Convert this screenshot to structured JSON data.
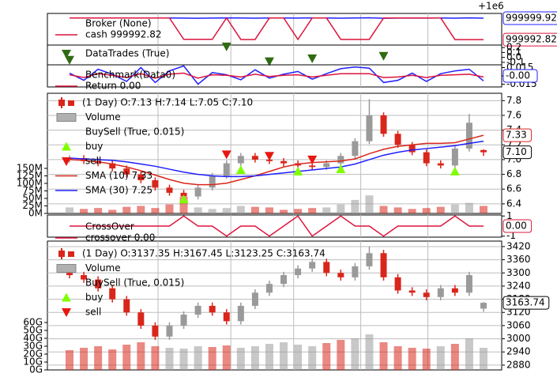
{
  "x_grid": [
    6.2,
    11.3,
    15.7,
    20.4,
    25.1
  ],
  "chart_data": [
    {
      "type": "line",
      "offset_text": "+1e6",
      "ylim": [
        999991,
        1000001.5
      ],
      "series": [
        {
          "color": "#1f1fff",
          "values": [
            1000000,
            1000000,
            1000000,
            1000000,
            1000000,
            1000000,
            1000000,
            1000000,
            999999.96,
            999999.9,
            999999.95,
            1000000.02,
            999999.98,
            999999.93,
            1000000,
            1000000,
            999999.97,
            1000000,
            1000000,
            999999.94,
            999999.99,
            1000000.05,
            999999.9,
            999999.95,
            999999.97,
            999999.96,
            999999.99,
            999999.93,
            1000000.03,
            999999.92
          ]
        },
        {
          "color": "#dc143c",
          "values": [
            1000000,
            1000000,
            1000000,
            1000000,
            1000000,
            1000000,
            1000000,
            1000000,
            999992.9,
            999992.9,
            999992.9,
            1000000,
            999992.85,
            999992.85,
            1000000,
            1000000,
            999992.86,
            1000000,
            1000000,
            999992.88,
            999992.88,
            999992.88,
            1000000,
            1000000,
            1000000,
            1000000,
            1000000,
            999992.82,
            999992.82,
            999992.82
          ]
        }
      ],
      "legend": [
        {
          "label": "Broker (None)",
          "color": null,
          "marker": "none"
        },
        {
          "label": "cash 999992.82",
          "color": "#dc143c",
          "marker": "line"
        }
      ],
      "value_labels": [
        {
          "value": 999999.92,
          "label": "999999.92",
          "color": "#1f1fff"
        },
        {
          "value": 999992.82,
          "label": "999992.82",
          "color": "#dc143c"
        }
      ]
    },
    {
      "type": "scatter",
      "ylim": [
        -0.15,
        0.25
      ],
      "yticks": [
        0.2,
        0.1,
        {
          "value": 0,
          "label": "0.0"
        },
        -0.1
      ],
      "color": "#2e6b12",
      "x": [
        0,
        11,
        14,
        17,
        22
      ],
      "values": [
        -0.05,
        0.22,
        -0.08,
        -0.02,
        0.03
      ],
      "legend": [
        {
          "label": "DataTrades (True)",
          "color": "#2e6b12",
          "marker": "down"
        }
      ]
    },
    {
      "type": "line",
      "ylim": [
        -0.02,
        0.02
      ],
      "yticks": [
        0.015,
        {
          "value": 0,
          "label": "0.000"
        },
        -0.015
      ],
      "series": [
        {
          "color": "#1f1fff",
          "values": [
            0.005,
            -0.008,
            0.012,
            0.003,
            -0.01,
            0.015,
            -0.012,
            0.009,
            0.018,
            -0.015,
            0.006,
            0.002,
            -0.007,
            0.011,
            -0.004,
            0.003,
            0.008,
            -0.006,
            0.004,
            0.013,
            0.016,
            0.014,
            -0.012,
            -0.008,
            0.005,
            -0.01,
            0.004,
            0.009,
            0.012,
            -0.009
          ]
        },
        {
          "color": "#dc143c",
          "values": [
            0.002,
            -0.003,
            0.004,
            0.001,
            -0.003,
            0.004,
            -0.004,
            0.003,
            0.005,
            -0.004,
            0.002,
            0.001,
            -0.002,
            0.003,
            -0.001,
            0.001,
            0.002,
            -0.002,
            0.001,
            0.004,
            0.004,
            0.004,
            -0.003,
            -0.002,
            0.001,
            -0.003,
            0.001,
            0.002,
            0.003,
            -0.002
          ]
        }
      ],
      "legend": [
        {
          "label": "Benchmark(Data0)",
          "color": null,
          "marker": "none"
        },
        {
          "label": "Return 0.00",
          "color": "#dc143c",
          "marker": "line"
        }
      ],
      "value_labels": [
        {
          "value": 0,
          "label": "-0.00",
          "color": "#1f1fff"
        }
      ]
    },
    {
      "type": "candlestick",
      "ylim": [
        6.27,
        7.9
      ],
      "grid": true,
      "yticks": [
        6.4,
        6.6,
        6.8,
        {
          "value": 7,
          "label": "7.0"
        },
        7.2,
        7.4,
        7.6,
        7.8
      ],
      "colors": {
        "up": "#9a9a9a",
        "down": "#d9261c"
      },
      "open": [
        7.0,
        7.02,
        6.98,
        6.95,
        6.88,
        6.8,
        6.72,
        6.62,
        6.55,
        6.5,
        6.62,
        6.78,
        6.95,
        7.05,
        7.0,
        6.98,
        6.95,
        6.92,
        6.9,
        6.95,
        7.05,
        7.25,
        7.6,
        7.35,
        7.2,
        7.1,
        6.95,
        6.92,
        7.15,
        7.13
      ],
      "high": [
        7.06,
        7.06,
        7.02,
        6.99,
        6.92,
        6.84,
        6.76,
        6.66,
        6.59,
        6.66,
        6.82,
        6.99,
        7.09,
        7.09,
        7.04,
        7.02,
        6.99,
        6.96,
        6.99,
        7.09,
        7.29,
        7.82,
        7.64,
        7.39,
        7.24,
        7.14,
        6.99,
        7.19,
        7.62,
        7.14
      ],
      "low": [
        6.96,
        6.94,
        6.91,
        6.84,
        6.76,
        6.68,
        6.58,
        6.51,
        6.46,
        6.46,
        6.58,
        6.74,
        6.91,
        6.96,
        6.94,
        6.91,
        6.88,
        6.86,
        6.86,
        6.91,
        7.01,
        7.21,
        7.31,
        7.16,
        7.06,
        6.91,
        6.88,
        6.88,
        7.11,
        7.05
      ],
      "close": [
        7.02,
        6.98,
        6.95,
        6.88,
        6.8,
        6.72,
        6.62,
        6.55,
        6.5,
        6.62,
        6.78,
        6.95,
        7.05,
        7.0,
        6.98,
        6.95,
        6.92,
        6.9,
        6.95,
        7.05,
        7.25,
        7.6,
        7.35,
        7.2,
        7.1,
        6.95,
        6.92,
        7.15,
        7.5,
        7.1
      ],
      "volume": [
        20,
        15,
        18,
        12,
        22,
        25,
        18,
        30,
        55,
        20,
        15,
        18,
        25,
        22,
        20,
        12,
        15,
        18,
        20,
        30,
        45,
        60,
        25,
        20,
        15,
        18,
        22,
        30,
        35,
        25
      ],
      "volume_ylim": [
        0,
        400
      ],
      "volume_ticks": [
        {
          "value": 0,
          "label": "0M"
        },
        {
          "value": 25,
          "label": "25M"
        },
        {
          "value": 50,
          "label": "50M"
        },
        {
          "value": 75,
          "label": "75M"
        },
        {
          "value": 100,
          "label": "100M"
        },
        {
          "value": 125,
          "label": "125M"
        },
        {
          "value": 150,
          "label": "150M"
        }
      ],
      "lines": [
        {
          "color": "#d9261c",
          "values": [
            7.0,
            6.99,
            6.97,
            6.94,
            6.9,
            6.85,
            6.79,
            6.73,
            6.68,
            6.66,
            6.66,
            6.68,
            6.73,
            6.78,
            6.84,
            6.9,
            6.94,
            6.96,
            6.97,
            6.98,
            7.01,
            7.08,
            7.14,
            7.18,
            7.2,
            7.22,
            7.22,
            7.23,
            7.28,
            7.33
          ]
        },
        {
          "color": "#1f1fff",
          "values": [
            7.02,
            7.01,
            7.0,
            6.99,
            6.97,
            6.94,
            6.91,
            6.87,
            6.83,
            6.8,
            6.78,
            6.77,
            6.77,
            6.78,
            6.8,
            6.82,
            6.84,
            6.86,
            6.88,
            6.9,
            6.94,
            7.0,
            7.06,
            7.1,
            7.13,
            7.15,
            7.17,
            7.19,
            7.22,
            7.25
          ]
        }
      ],
      "signals": [
        {
          "color": "#7fff00",
          "marker": "up",
          "x": [
            8,
            12,
            16,
            19,
            27
          ],
          "values": [
            6.46,
            6.86,
            6.84,
            6.87,
            6.84
          ]
        },
        {
          "color": "#e8170f",
          "marker": "down",
          "x": [
            11,
            14,
            17
          ],
          "values": [
            7.07,
            7.05,
            7.0
          ]
        }
      ],
      "legend": [
        {
          "label": "(1 Day) O:7.13 H:7.14 L:7.05 C:7.10",
          "color": "#d9261c",
          "marker": "candle"
        },
        {
          "label": "Volume",
          "color": "#b0b0b0",
          "marker": "bar"
        },
        {
          "label": "BuySell (True, 0.015)",
          "color": null,
          "marker": "none"
        },
        {
          "label": "buy",
          "color": "#7fff00",
          "marker": "up"
        },
        {
          "label": "sell",
          "color": "#e8170f",
          "marker": "down"
        },
        {
          "label": "SMA (10) 7.33",
          "color": "#d9261c",
          "marker": "line"
        },
        {
          "label": "SMA (30) 7.25",
          "color": "#1f1fff",
          "marker": "line"
        }
      ],
      "value_labels": [
        {
          "value": 7.33,
          "label": "7.33",
          "color": "#d9261c"
        },
        {
          "value": 7.1,
          "label": "7.10",
          "color": "#000000"
        }
      ]
    },
    {
      "type": "line",
      "ylim": [
        -1.1,
        1.1
      ],
      "yticks": [
        1,
        -1
      ],
      "series": [
        {
          "color": "#dc143c",
          "values": [
            0,
            0,
            0,
            0,
            0,
            0,
            0,
            0,
            1,
            0,
            0,
            -1,
            0,
            0,
            -1,
            0,
            1,
            -1,
            0,
            1,
            0,
            0,
            -1,
            0,
            0,
            0,
            0,
            1,
            0,
            0
          ]
        }
      ],
      "legend": [
        {
          "label": "CrossOver",
          "color": null,
          "marker": "none"
        },
        {
          "label": "crossover 0.00",
          "color": "#dc143c",
          "marker": "line"
        }
      ],
      "value_labels": [
        {
          "value": 0,
          "label": "0.00",
          "color": "#dc143c"
        }
      ]
    },
    {
      "type": "candlestick",
      "ylim": [
        2858,
        3445
      ],
      "grid": true,
      "yticks": [
        2880,
        2940,
        3000,
        3060,
        3120,
        3180,
        3240,
        3300,
        3360,
        3420
      ],
      "colors": {
        "up": "#9a9a9a",
        "down": "#d9261c"
      },
      "open": [
        3300,
        3290,
        3270,
        3230,
        3180,
        3120,
        3060,
        3010,
        3060,
        3110,
        3150,
        3120,
        3080,
        3150,
        3210,
        3250,
        3290,
        3320,
        3350,
        3300,
        3280,
        3330,
        3390,
        3280,
        3220,
        3210,
        3190,
        3230,
        3210,
        3137.35
      ],
      "high": [
        3315,
        3305,
        3285,
        3245,
        3195,
        3135,
        3075,
        3075,
        3125,
        3165,
        3165,
        3135,
        3165,
        3225,
        3265,
        3305,
        3335,
        3365,
        3365,
        3315,
        3345,
        3420,
        3405,
        3295,
        3235,
        3225,
        3245,
        3245,
        3305,
        3167.45
      ],
      "low": [
        3275,
        3255,
        3215,
        3165,
        3105,
        3045,
        2995,
        2995,
        3045,
        3095,
        3105,
        3065,
        3065,
        3135,
        3195,
        3235,
        3275,
        3305,
        3285,
        3265,
        3265,
        3315,
        3265,
        3205,
        3195,
        3175,
        3175,
        3195,
        3195,
        3123.25
      ],
      "close": [
        3290,
        3270,
        3230,
        3180,
        3120,
        3060,
        3010,
        3060,
        3110,
        3150,
        3120,
        3080,
        3150,
        3210,
        3250,
        3290,
        3320,
        3350,
        3300,
        3280,
        3330,
        3390,
        3280,
        3220,
        3210,
        3190,
        3230,
        3210,
        3290,
        3163.74
      ],
      "volume": [
        25,
        28,
        30,
        26,
        32,
        35,
        30,
        28,
        27,
        30,
        29,
        31,
        28,
        30,
        33,
        35,
        32,
        30,
        34,
        38,
        40,
        45,
        35,
        30,
        28,
        27,
        30,
        33,
        40,
        28
      ],
      "volume_ylim": [
        0,
        163
      ],
      "volume_ticks": [
        {
          "value": 0,
          "label": "0G"
        },
        {
          "value": 10,
          "label": "10G"
        },
        {
          "value": 20,
          "label": "20G"
        },
        {
          "value": 30,
          "label": "30G"
        },
        {
          "value": 40,
          "label": "40G"
        },
        {
          "value": 50,
          "label": "50G"
        },
        {
          "value": 60,
          "label": "60G"
        }
      ],
      "legend": [
        {
          "label": "(1 Day) O:3137.35 H:3167.45 L:3123.25 C:3163.74",
          "color": "#d9261c",
          "marker": "candle"
        },
        {
          "label": "Volume",
          "color": "#b0b0b0",
          "marker": "bar"
        },
        {
          "label": "BuySell (True, 0.015)",
          "color": null,
          "marker": "none"
        },
        {
          "label": "buy",
          "color": "#7fff00",
          "marker": "up"
        },
        {
          "label": "sell",
          "color": "#e8170f",
          "marker": "down"
        }
      ],
      "value_labels": [
        {
          "value": 3163.74,
          "label": "3163.74",
          "color": "#000000"
        }
      ]
    }
  ]
}
